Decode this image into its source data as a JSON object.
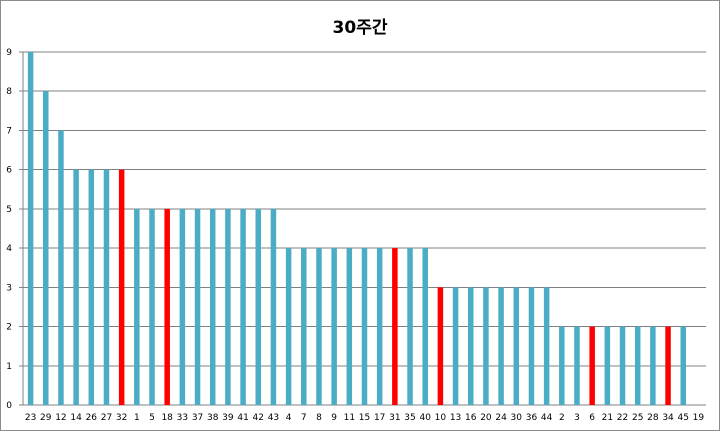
{
  "chart_data": {
    "type": "bar",
    "title": "30주간",
    "xlabel": "",
    "ylabel": "",
    "ylim": [
      0,
      9
    ],
    "yticks": [
      0,
      1,
      2,
      3,
      4,
      5,
      6,
      7,
      8,
      9
    ],
    "grid": true,
    "legend": "none",
    "categories": [
      "23",
      "29",
      "12",
      "14",
      "26",
      "27",
      "32",
      "1",
      "5",
      "18",
      "33",
      "37",
      "38",
      "39",
      "41",
      "42",
      "43",
      "4",
      "7",
      "8",
      "9",
      "11",
      "15",
      "17",
      "31",
      "35",
      "40",
      "10",
      "13",
      "16",
      "20",
      "24",
      "30",
      "36",
      "44",
      "2",
      "3",
      "6",
      "21",
      "22",
      "25",
      "28",
      "34",
      "45",
      "19"
    ],
    "values": [
      9,
      8,
      7,
      6,
      6,
      6,
      6,
      5,
      5,
      5,
      5,
      5,
      5,
      5,
      5,
      5,
      5,
      4,
      4,
      4,
      4,
      4,
      4,
      4,
      4,
      4,
      4,
      3,
      3,
      3,
      3,
      3,
      3,
      3,
      3,
      2,
      2,
      2,
      2,
      2,
      2,
      2,
      2,
      2,
      0
    ],
    "highlighted": [
      "32",
      "18",
      "31",
      "10",
      "6",
      "34"
    ],
    "colors": {
      "bar": "#4bacc6",
      "highlight": "#ff0000",
      "grid": "#808080",
      "axis": "#808080"
    }
  }
}
